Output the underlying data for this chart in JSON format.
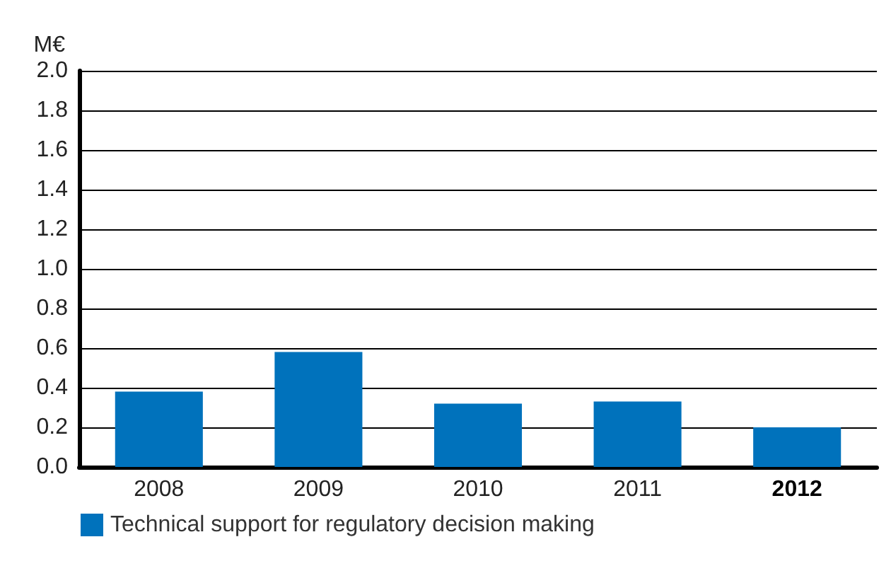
{
  "chart_data": {
    "type": "bar",
    "ylabel": "M€",
    "categories": [
      "2008",
      "2009",
      "2010",
      "2011",
      "2012"
    ],
    "series": [
      {
        "name": "Technical support for regulatory decision making",
        "color": "#0072bc",
        "values": [
          0.38,
          0.58,
          0.32,
          0.33,
          0.2
        ]
      }
    ],
    "ylim": [
      0,
      2.0
    ],
    "yticks": [
      {
        "value": 0,
        "label": "0.0"
      },
      {
        "value": 0.2,
        "label": "0.2"
      },
      {
        "value": 0.4,
        "label": "0.4"
      },
      {
        "value": 0.6,
        "label": "0.6"
      },
      {
        "value": 0.8,
        "label": "0.8"
      },
      {
        "value": 1.0,
        "label": "1.0"
      },
      {
        "value": 1.2,
        "label": "1.2"
      },
      {
        "value": 1.4,
        "label": "1.4"
      },
      {
        "value": 1.6,
        "label": "1.6"
      },
      {
        "value": 1.8,
        "label": "1.8"
      },
      {
        "value": 2.0,
        "label": "2.0"
      }
    ],
    "grid": "y",
    "legend": "bottom left"
  }
}
